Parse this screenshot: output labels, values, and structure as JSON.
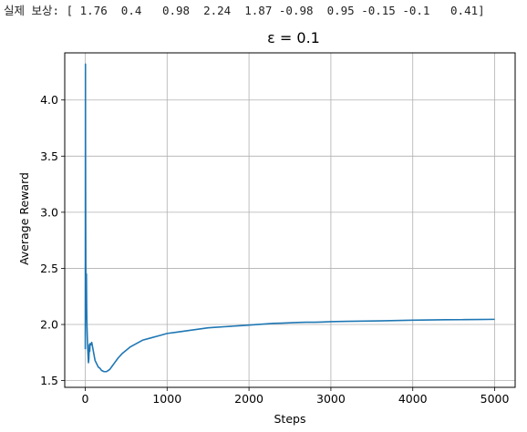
{
  "output": {
    "label": "실제 보상:",
    "array_text": "[ 1.76  0.4   0.98  2.24  1.87 -0.98  0.95 -0.15 -0.1   0.41]"
  },
  "colors": {
    "line": "#1f77b4",
    "grid": "#b0b0b0",
    "axis": "#000000"
  },
  "chart_data": {
    "type": "line",
    "title": "ε = 0.1",
    "xlabel": "Steps",
    "ylabel": "Average Reward",
    "xlim": [
      -250,
      5250
    ],
    "ylim": [
      1.44,
      4.42
    ],
    "xticks": [
      0,
      1000,
      2000,
      3000,
      4000,
      5000
    ],
    "xtick_labels": [
      "0",
      "1000",
      "2000",
      "3000",
      "4000",
      "5000"
    ],
    "yticks": [
      1.5,
      2.0,
      2.5,
      3.0,
      3.5,
      4.0
    ],
    "ytick_labels": [
      "1.5",
      "2.0",
      "2.5",
      "3.0",
      "3.5",
      "4.0"
    ],
    "grid": true,
    "series": [
      {
        "x": [
          1,
          2,
          3,
          4,
          6,
          8,
          10,
          12,
          15,
          18,
          21,
          25,
          30,
          35,
          40,
          45,
          50,
          55,
          60,
          70,
          80,
          90,
          100,
          110,
          120,
          140,
          160,
          180,
          200,
          230,
          260,
          280,
          300,
          330,
          360,
          400,
          450,
          500,
          550,
          600,
          700,
          800,
          900,
          1000,
          1100,
          1200,
          1300,
          1400,
          1500,
          1600,
          1700,
          1800,
          1900,
          2000,
          2100,
          2200,
          2300,
          2400,
          2500,
          2600,
          2700,
          2800,
          2900,
          3000,
          3200,
          3400,
          3600,
          3800,
          4000,
          4200,
          4400,
          4600,
          4800,
          5000
        ],
        "y": [
          1.78,
          3.0,
          4.32,
          3.6,
          2.9,
          2.45,
          2.2,
          2.05,
          2.45,
          2.15,
          2.0,
          1.9,
          1.8,
          1.72,
          1.66,
          1.7,
          1.82,
          1.76,
          1.83,
          1.82,
          1.84,
          1.8,
          1.76,
          1.72,
          1.68,
          1.65,
          1.62,
          1.61,
          1.59,
          1.58,
          1.58,
          1.59,
          1.6,
          1.63,
          1.66,
          1.7,
          1.74,
          1.77,
          1.8,
          1.82,
          1.86,
          1.88,
          1.9,
          1.92,
          1.93,
          1.94,
          1.95,
          1.96,
          1.97,
          1.975,
          1.98,
          1.985,
          1.99,
          1.995,
          2.0,
          2.005,
          2.01,
          2.012,
          2.015,
          2.018,
          2.02,
          2.02,
          2.022,
          2.025,
          2.028,
          2.03,
          2.032,
          2.035,
          2.038,
          2.04,
          2.042,
          2.043,
          2.044,
          2.046
        ]
      }
    ]
  }
}
